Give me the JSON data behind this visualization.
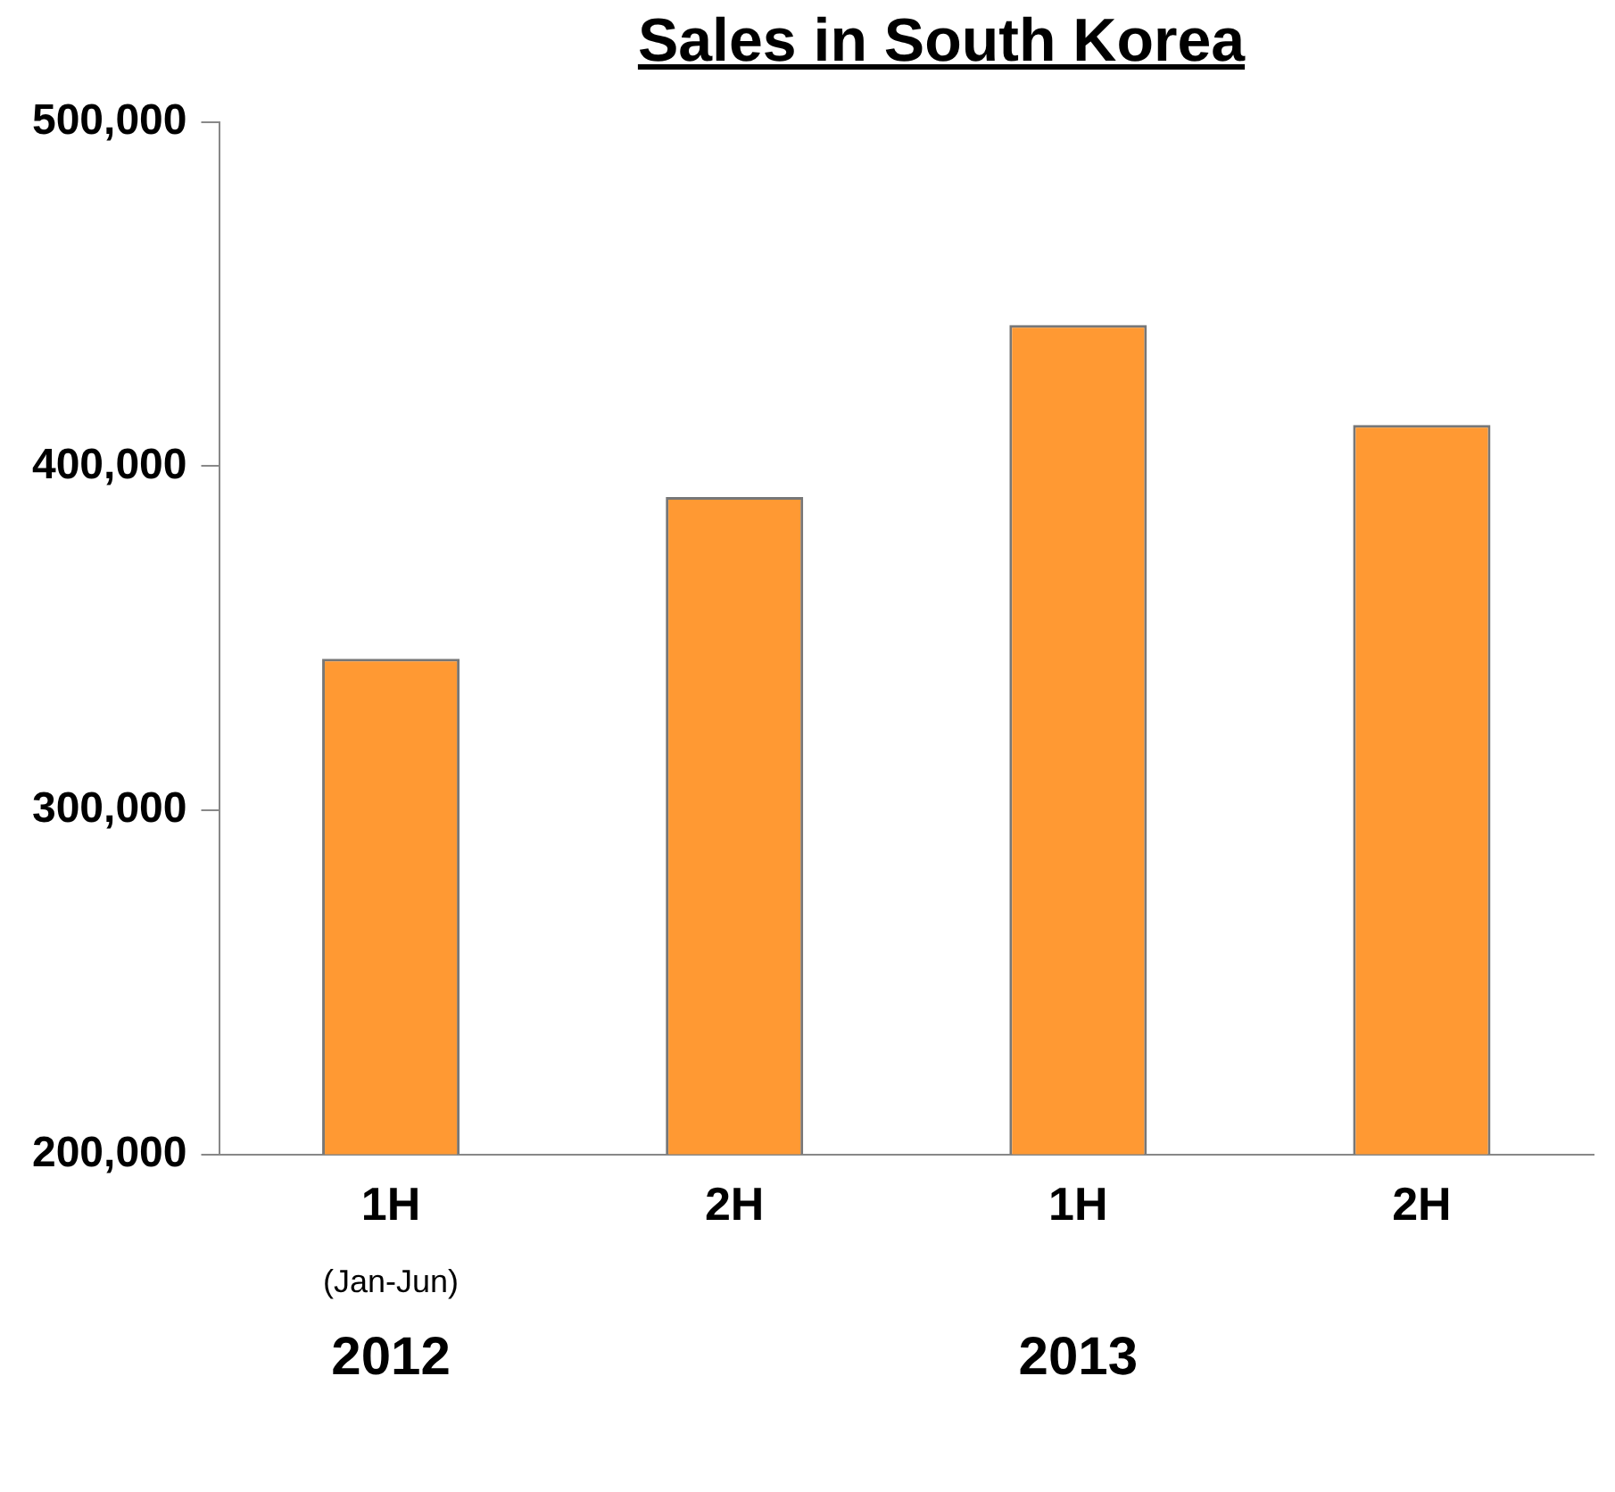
{
  "chart_data": {
    "type": "bar",
    "title": "Sales in South Korea",
    "categories": [
      "1H",
      "2H",
      "1H",
      "2H"
    ],
    "values": [
      344000,
      391000,
      441000,
      412000
    ],
    "color": "#ff9933",
    "ylim": [
      200000,
      500000
    ],
    "yticks": [
      {
        "value": 200000,
        "label": "200,000"
      },
      {
        "value": 300000,
        "label": "300,000"
      },
      {
        "value": 400000,
        "label": "400,000"
      },
      {
        "value": 500000,
        "label": "500,000"
      }
    ],
    "grid": false,
    "legend": false,
    "annotations": [
      "(Jan-Jun)",
      "2012",
      "2013"
    ]
  }
}
